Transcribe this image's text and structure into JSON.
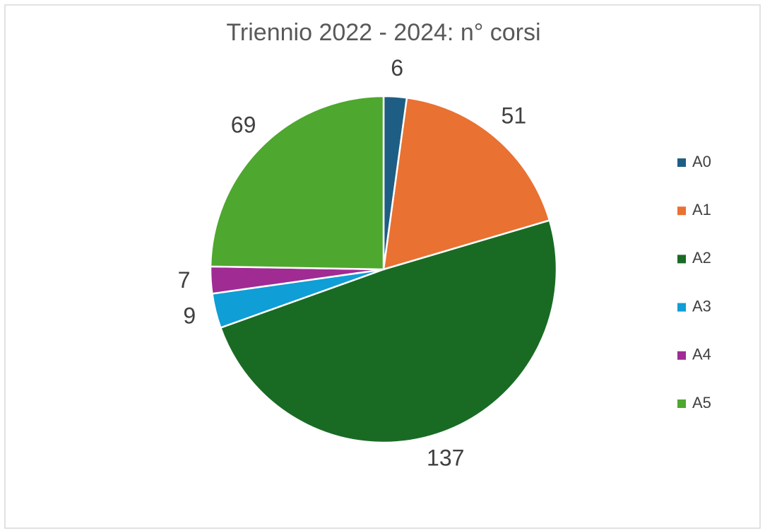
{
  "chart_data": {
    "type": "pie",
    "title": "Triennio 2022 - 2024: n° corsi",
    "categories": [
      "A0",
      "A1",
      "A2",
      "A3",
      "A4",
      "A5"
    ],
    "values": [
      6,
      51,
      137,
      9,
      7,
      69
    ],
    "colors": [
      "#1f5e84",
      "#e97132",
      "#196b24",
      "#0f9ed5",
      "#a02b93",
      "#4ea72e"
    ],
    "legend": "right"
  }
}
